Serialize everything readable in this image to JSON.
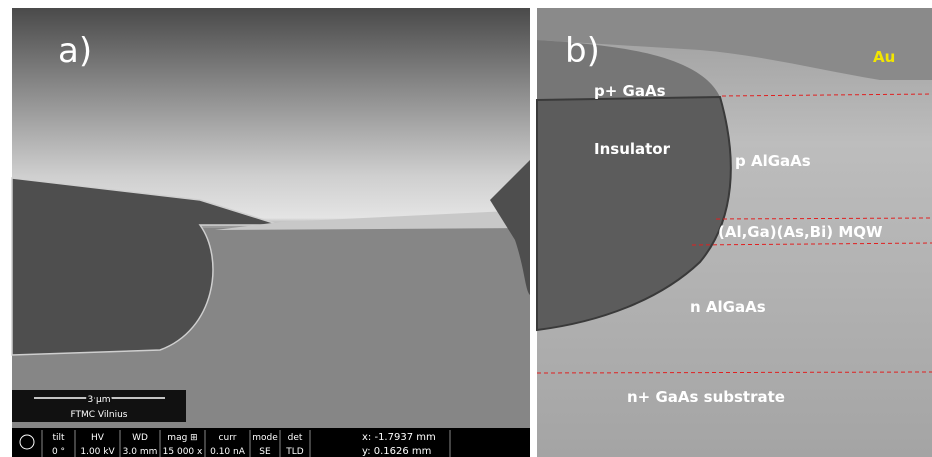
{
  "panels": [
    {
      "label": "a)",
      "scale_bar": {
        "length": "3 μm",
        "caption": "FTMC Vilnius"
      },
      "info_bar": [
        {
          "name": "tilt",
          "value": "0 °"
        },
        {
          "name": "HV",
          "value": "1.00 kV"
        },
        {
          "name": "WD",
          "value": "3.0 mm"
        },
        {
          "name": "mag ⊞",
          "value": "15 000 x"
        },
        {
          "name": "curr",
          "value": "0.10 nA"
        },
        {
          "name": "mode",
          "value": "SE"
        },
        {
          "name": "det",
          "value": "TLD"
        }
      ],
      "coords": [
        "x: -1.7937 mm",
        "y: 0.1626 mm"
      ]
    },
    {
      "label": "b)",
      "layers": [
        "Au",
        "p+ GaAs",
        "Insulator",
        "p AlGaAs",
        "(Al,Ga)(As,Bi) MQW",
        "n AlGaAs",
        "n+ GaAs substrate"
      ]
    }
  ]
}
